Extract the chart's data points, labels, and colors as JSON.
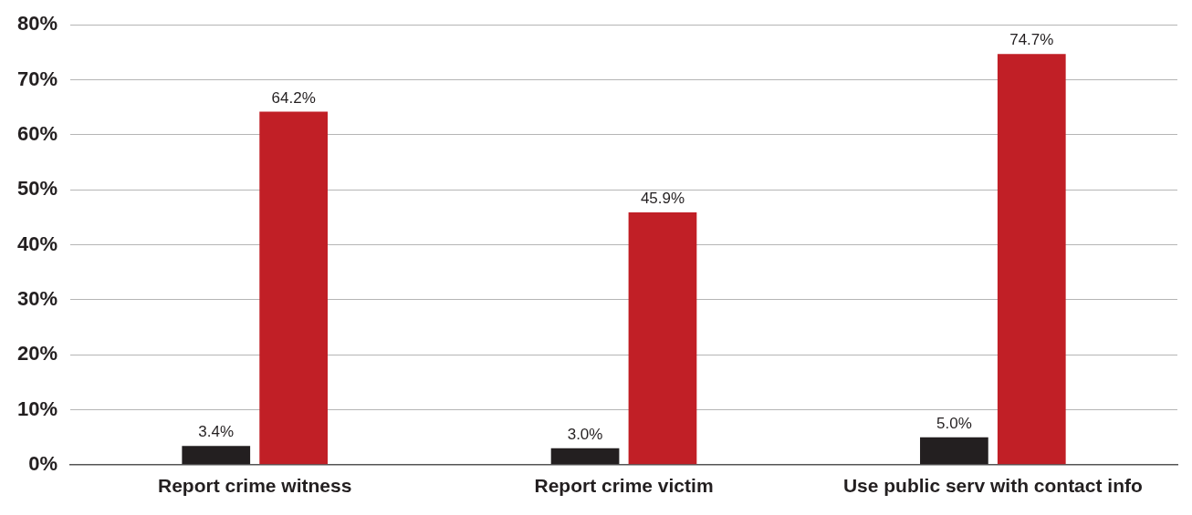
{
  "chart_data": {
    "type": "bar",
    "categories": [
      "Report crime witness",
      "Report crime victim",
      "Use public serv with contact info"
    ],
    "series": [
      {
        "color": "#231f20",
        "values": [
          3.4,
          3.0,
          5.0
        ],
        "value_labels": [
          "3.4%",
          "3.0%",
          "5.0%"
        ]
      },
      {
        "color": "#c11f26",
        "values": [
          64.2,
          45.9,
          74.7
        ],
        "value_labels": [
          "64.2%",
          "45.9%",
          "74.7%"
        ]
      }
    ],
    "ylim": [
      0,
      80
    ],
    "yticks": [
      {
        "value": 0,
        "label": "0%"
      },
      {
        "value": 10,
        "label": "10%"
      },
      {
        "value": 20,
        "label": "20%"
      },
      {
        "value": 30,
        "label": "30%"
      },
      {
        "value": 40,
        "label": "40%"
      },
      {
        "value": 50,
        "label": "50%"
      },
      {
        "value": 60,
        "label": "60%"
      },
      {
        "value": 70,
        "label": "70%"
      },
      {
        "value": 80,
        "label": "80%"
      }
    ],
    "grid": "y",
    "legend": false
  }
}
